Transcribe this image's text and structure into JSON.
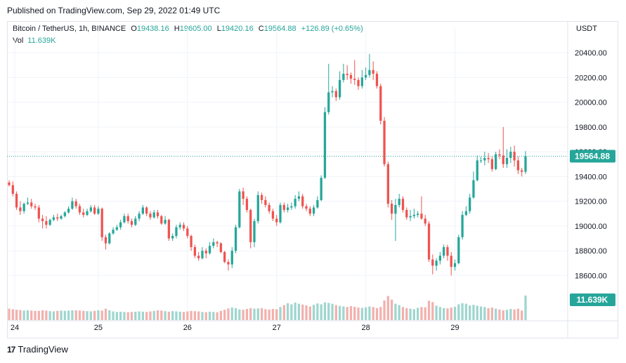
{
  "published": "Published on TradingView.com, Sep 29, 2022 01:49 UTC",
  "legend": {
    "symbol": "Bitcoin / TetherUS, 1h, BINANCE",
    "o_label": "O",
    "o": "19438.16",
    "h_label": "H",
    "h": "19605.00",
    "l_label": "L",
    "l": "19420.16",
    "c_label": "C",
    "c": "19564.88",
    "change": "+126.89 (+0.65%)",
    "vol_label": "Vol",
    "vol": "11.639K"
  },
  "currency": "USDT",
  "last_price_label": "19564.88",
  "last_volume_label": "11.639K",
  "footer": {
    "brand": "TradingView",
    "logo": "17"
  },
  "colors": {
    "up": "#26a69a",
    "down": "#ef5350",
    "up_vol": "#9fd6cf",
    "down_vol": "#f2b1ae",
    "grid": "#f0f3fa"
  },
  "chart_data": {
    "type": "candlestick",
    "interval": "1h",
    "y_ticks": [
      "20400.00",
      "20200.00",
      "20000.00",
      "19800.00",
      "19600.00",
      "19400.00",
      "19200.00",
      "19000.00",
      "18800.00",
      "18600.00"
    ],
    "ylim": [
      18580,
      20440
    ],
    "x_ticks": [
      "24",
      "25",
      "26",
      "27",
      "28",
      "29"
    ],
    "close": [
      19330,
      19260,
      19150,
      19120,
      19180,
      19190,
      19160,
      19150,
      19060,
      19040,
      19010,
      19050,
      19070,
      19060,
      19080,
      19110,
      19140,
      19200,
      19160,
      19110,
      19090,
      19120,
      19150,
      19100,
      19140,
      18910,
      18860,
      18940,
      18970,
      18990,
      19030,
      19080,
      19040,
      19010,
      19060,
      19100,
      19150,
      19100,
      19070,
      19110,
      19080,
      19020,
      19050,
      18900,
      18920,
      18990,
      19010,
      18980,
      18920,
      18830,
      18760,
      18740,
      18800,
      18780,
      18840,
      18870,
      18860,
      18790,
      18710,
      18690,
      18800,
      18990,
      19280,
      19220,
      19130,
      18870,
      19040,
      19250,
      19210,
      19170,
      19120,
      19060,
      19030,
      19170,
      19130,
      19150,
      19160,
      19220,
      19240,
      19160,
      19140,
      19100,
      19150,
      19210,
      19390,
      19920,
      20080,
      20090,
      20040,
      20180,
      20230,
      20220,
      20190,
      20180,
      20130,
      20200,
      20220,
      20260,
      20230,
      20130,
      19850,
      19500,
      19180,
      19100,
      19170,
      19220,
      19130,
      19070,
      19080,
      19090,
      19100,
      19060,
      19020,
      18730,
      18680,
      18720,
      18760,
      18830,
      18760,
      18670,
      18700,
      18910,
      19090,
      19120,
      19230,
      19370,
      19530,
      19530,
      19550,
      19540,
      19460,
      19580,
      19570,
      19500,
      19550,
      19600,
      19530,
      19450,
      19438,
      19564
    ],
    "open": [
      19352,
      19330,
      19260,
      19150,
      19120,
      19180,
      19190,
      19160,
      19150,
      19060,
      19040,
      19010,
      19050,
      19070,
      19060,
      19080,
      19110,
      19140,
      19200,
      19160,
      19110,
      19090,
      19120,
      19150,
      19100,
      19140,
      18910,
      18860,
      18940,
      18970,
      18990,
      19030,
      19080,
      19040,
      19010,
      19060,
      19100,
      19150,
      19100,
      19070,
      19110,
      19080,
      19020,
      19050,
      18900,
      18920,
      18990,
      19010,
      18980,
      18920,
      18830,
      18760,
      18740,
      18800,
      18780,
      18840,
      18870,
      18860,
      18790,
      18710,
      18690,
      18800,
      18990,
      19280,
      19220,
      19130,
      18870,
      19040,
      19250,
      19210,
      19170,
      19120,
      19060,
      19030,
      19170,
      19130,
      19150,
      19160,
      19220,
      19240,
      19160,
      19140,
      19100,
      19150,
      19210,
      19390,
      19920,
      20080,
      20090,
      20040,
      20180,
      20230,
      20220,
      20190,
      20180,
      20130,
      20200,
      20220,
      20260,
      20230,
      20130,
      19850,
      19500,
      19180,
      19100,
      19170,
      19220,
      19130,
      19070,
      19080,
      19090,
      19100,
      19060,
      19020,
      18730,
      18680,
      18720,
      18760,
      18830,
      18760,
      18670,
      18700,
      18910,
      19090,
      19120,
      19230,
      19370,
      19530,
      19530,
      19550,
      19540,
      19460,
      19580,
      19570,
      19500,
      19550,
      19600,
      19530,
      19450,
      19438
    ],
    "high": [
      19370,
      19360,
      19280,
      19200,
      19190,
      19230,
      19220,
      19180,
      19170,
      19090,
      19080,
      19060,
      19090,
      19100,
      19090,
      19120,
      19160,
      19230,
      19220,
      19180,
      19140,
      19140,
      19170,
      19170,
      19160,
      19150,
      18930,
      18950,
      18990,
      19010,
      19050,
      19100,
      19100,
      19060,
      19080,
      19120,
      19170,
      19160,
      19120,
      19130,
      19130,
      19090,
      19080,
      19060,
      18940,
      19010,
      19030,
      19030,
      19000,
      18930,
      18850,
      18790,
      18830,
      18820,
      18870,
      18900,
      18880,
      18870,
      18800,
      18730,
      18830,
      19010,
      19300,
      19310,
      19240,
      19140,
      19060,
      19280,
      19270,
      19240,
      19190,
      19140,
      19090,
      19190,
      19190,
      19180,
      19190,
      19250,
      19280,
      19260,
      19180,
      19160,
      19170,
      19240,
      19410,
      19960,
      20310,
      20130,
      20110,
      20250,
      20310,
      20300,
      20240,
      20340,
      20200,
      20260,
      20280,
      20390,
      20330,
      20250,
      20150,
      19880,
      19520,
      19210,
      19220,
      19260,
      19240,
      19150,
      19130,
      19140,
      19120,
      19240,
      19090,
      19040,
      18770,
      18740,
      18790,
      18850,
      18850,
      18790,
      18730,
      18930,
      19120,
      19160,
      19260,
      19440,
      19570,
      19560,
      19600,
      19590,
      19560,
      19600,
      19620,
      19800,
      19620,
      19640,
      19650,
      19560,
      19470,
      19605
    ],
    "low": [
      19320,
      19240,
      19130,
      19090,
      19100,
      19170,
      19140,
      19130,
      19030,
      18980,
      18980,
      19000,
      19040,
      19040,
      19050,
      19070,
      19100,
      19130,
      19140,
      19090,
      19070,
      19080,
      19110,
      19090,
      19090,
      18880,
      18810,
      18850,
      18930,
      18960,
      18970,
      19020,
      19020,
      18990,
      19000,
      19040,
      19090,
      19080,
      19050,
      19060,
      19060,
      19010,
      19010,
      18880,
      18880,
      18900,
      18970,
      18960,
      18900,
      18800,
      18740,
      18720,
      18730,
      18740,
      18770,
      18820,
      18830,
      18780,
      18700,
      18640,
      18660,
      18780,
      18980,
      19170,
      19110,
      18820,
      18830,
      19020,
      19180,
      19150,
      19100,
      19040,
      19000,
      19020,
      19110,
      19110,
      19130,
      19140,
      19200,
      19140,
      19120,
      19080,
      19080,
      19140,
      19200,
      19380,
      19900,
      20040,
      20010,
      20020,
      20160,
      20180,
      20150,
      20140,
      20100,
      20110,
      20180,
      20200,
      20180,
      20110,
      19820,
      19480,
      19150,
      19050,
      18880,
      19150,
      19110,
      19050,
      19040,
      19060,
      19070,
      19050,
      19000,
      18710,
      18610,
      18640,
      18690,
      18740,
      18720,
      18600,
      18640,
      18690,
      18890,
      19080,
      19100,
      19220,
      19360,
      19510,
      19490,
      19510,
      19440,
      19450,
      19540,
      19470,
      19470,
      19510,
      19480,
      19420,
      19400,
      19420
    ],
    "volume": [
      4.2,
      4.0,
      3.8,
      3.7,
      3.5,
      3.6,
      3.5,
      3.4,
      3.4,
      3.6,
      3.5,
      3.3,
      3.2,
      3.4,
      3.5,
      3.4,
      3.5,
      3.6,
      3.6,
      3.5,
      3.4,
      3.3,
      3.2,
      3.4,
      3.6,
      3.5,
      4.2,
      3.6,
      3.2,
      3.0,
      3.1,
      3.0,
      2.9,
      3.0,
      3.1,
      3.2,
      3.1,
      3.0,
      3.2,
      3.4,
      3.6,
      3.5,
      3.3,
      3.1,
      3.3,
      3.2,
      3.1,
      3.0,
      3.2,
      3.4,
      3.3,
      3.2,
      3.0,
      2.9,
      3.1,
      3.0,
      2.9,
      3.4,
      3.8,
      4.3,
      4.6,
      4.4,
      3.9,
      3.8,
      4.1,
      4.4,
      4.2,
      4.3,
      4.4,
      4.0,
      3.9,
      4.1,
      4.0,
      4.8,
      5.5,
      6.2,
      5.8,
      6.4,
      6.0,
      5.7,
      5.4,
      5.0,
      5.6,
      6.1,
      5.8,
      6.5,
      6.3,
      6.0,
      5.5,
      5.2,
      5.0,
      4.8,
      5.1,
      4.9,
      4.6,
      4.5,
      4.7,
      5.0,
      4.8,
      4.4,
      4.8,
      7.2,
      8.8,
      7.5,
      6.0,
      5.5,
      4.8,
      4.4,
      4.2,
      4.0,
      4.5,
      4.8,
      4.7,
      7.1,
      6.6,
      5.3,
      4.8,
      4.4,
      4.3,
      4.6,
      4.9,
      5.8,
      6.2,
      6.0,
      5.4,
      5.6,
      5.3,
      5.0,
      4.8,
      4.4,
      4.6,
      4.2,
      3.9,
      3.6,
      3.8,
      4.1,
      3.9,
      4.2,
      3.5,
      11.639
    ],
    "vol_ylim": [
      0,
      40
    ]
  }
}
